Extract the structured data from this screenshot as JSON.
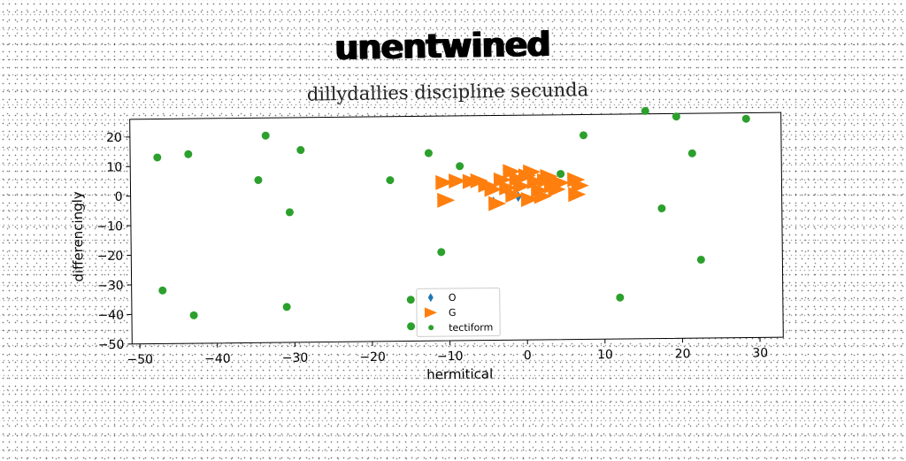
{
  "chart_data": {
    "type": "scatter",
    "title": "unentwined",
    "subtitle": "dillydallies discipline secunda",
    "xlabel": "hermitical",
    "ylabel": "differencingly",
    "xlim": [
      -51,
      33
    ],
    "ylim": [
      -50,
      26
    ],
    "xticks": [
      -50,
      -40,
      -30,
      -20,
      -10,
      0,
      10,
      20,
      30
    ],
    "xtick_labels": [
      "−50",
      "−40",
      "−30",
      "−20",
      "−10",
      "0",
      "10",
      "20",
      "30"
    ],
    "yticks": [
      20,
      10,
      0,
      -10,
      -20,
      -30,
      -40,
      -50
    ],
    "ytick_labels": [
      "20",
      "10",
      "0",
      "−10",
      "−20",
      "−30",
      "−40",
      "−50"
    ],
    "grid": false,
    "legend_position": "lower-center",
    "series": [
      {
        "name": "O",
        "marker": "diamond",
        "color": "#1f77b4",
        "points": [
          [
            -4.2,
            -3.2
          ],
          [
            -2.5,
            0.5
          ],
          [
            -1.0,
            -1.5
          ],
          [
            -3.0,
            2.0
          ]
        ]
      },
      {
        "name": "G",
        "marker": "triangle-right",
        "color": "#ff7f0e",
        "points": [
          [
            -10.5,
            3.5
          ],
          [
            -10.3,
            -2.5
          ],
          [
            -8.8,
            4.0
          ],
          [
            -7.0,
            3.8
          ],
          [
            -6.0,
            4.0
          ],
          [
            -5.0,
            2.5
          ],
          [
            -4.2,
            1.0
          ],
          [
            -3.7,
            -3.8
          ],
          [
            -3.0,
            4.2
          ],
          [
            -2.3,
            1.5
          ],
          [
            -1.8,
            7.0
          ],
          [
            -1.5,
            -1.0
          ],
          [
            -1.0,
            4.5
          ],
          [
            -0.5,
            2.0
          ],
          [
            0.2,
            5.5
          ],
          [
            0.5,
            -2.5
          ],
          [
            0.8,
            6.8
          ],
          [
            1.3,
            3.5
          ],
          [
            1.8,
            0.5
          ],
          [
            2.2,
            -1.5
          ],
          [
            2.6,
            3.8
          ],
          [
            3.0,
            5.2
          ],
          [
            3.5,
            2.0
          ],
          [
            4.0,
            0.8
          ],
          [
            4.5,
            3.0
          ],
          [
            6.5,
            4.0
          ],
          [
            7.0,
            2.0
          ],
          [
            6.6,
            -1.0
          ]
        ]
      },
      {
        "name": "tectiform",
        "marker": "circle",
        "color": "#2ca02c",
        "points": [
          [
            -47.5,
            13
          ],
          [
            -43.5,
            14
          ],
          [
            -34.5,
            5
          ],
          [
            -33.5,
            20
          ],
          [
            -30.5,
            -6
          ],
          [
            -29,
            15
          ],
          [
            -31,
            -38
          ],
          [
            -17.5,
            4.5
          ],
          [
            -12.5,
            13.5
          ],
          [
            -8.5,
            9
          ],
          [
            -11,
            -20
          ],
          [
            -15,
            -36
          ],
          [
            -15,
            -45
          ],
          [
            -47,
            -32
          ],
          [
            -43,
            -40.5
          ],
          [
            4.5,
            6
          ],
          [
            7.5,
            19
          ],
          [
            12,
            -36
          ],
          [
            15.5,
            27
          ],
          [
            17.5,
            -6
          ],
          [
            19.5,
            25
          ],
          [
            21.5,
            12.5
          ],
          [
            22.5,
            -23.5
          ],
          [
            28.5,
            24
          ]
        ]
      }
    ]
  }
}
